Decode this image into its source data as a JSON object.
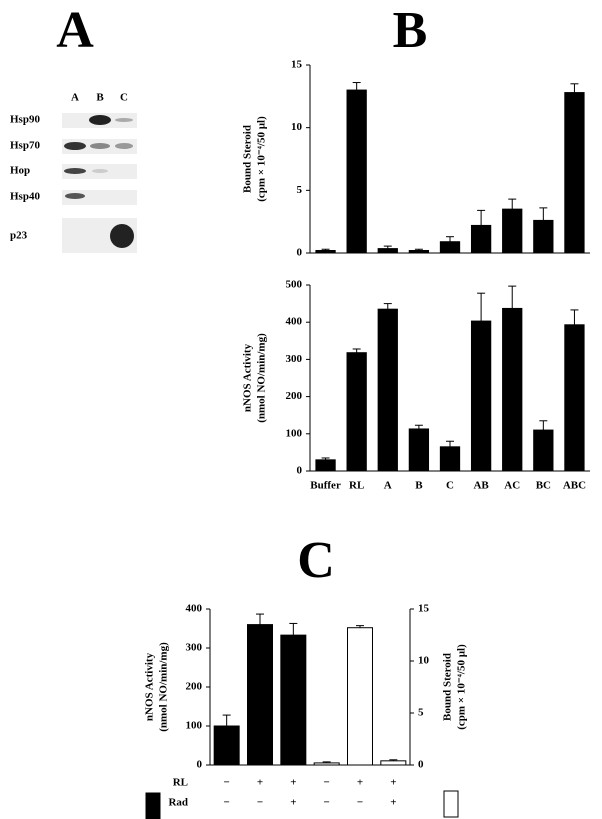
{
  "panel_labels": [
    "A",
    "B",
    "C"
  ],
  "blot": {
    "lanes": [
      "A",
      "B",
      "C"
    ],
    "rows": [
      "Hsp90",
      "Hsp70",
      "Hop",
      "Hsp40",
      "p23"
    ]
  },
  "chart_data": [
    {
      "type": "bar",
      "ylabel": [
        "Bound Steroid",
        "(cpm × 10⁻⁴/50 µl)"
      ],
      "series": [
        {
          "color": "#000000",
          "values": [
            0.2,
            13,
            0.35,
            0.2,
            0.9,
            2.2,
            3.5,
            2.6,
            12.8
          ],
          "errors": [
            0.1,
            0.6,
            0.2,
            0.1,
            0.4,
            1.2,
            0.8,
            1.0,
            0.7
          ]
        }
      ],
      "ylim": [
        0,
        15
      ],
      "yticks": [
        0,
        5,
        10,
        15
      ]
    },
    {
      "type": "bar",
      "ylabel": [
        "nNOS Activity",
        "(nmol NO/min/mg)"
      ],
      "categories": [
        "Buffer",
        "RL",
        "A",
        "B",
        "C",
        "AB",
        "AC",
        "BC",
        "ABC"
      ],
      "series": [
        {
          "color": "#000000",
          "values": [
            30,
            318,
            435,
            113,
            65,
            403,
            437,
            110,
            393
          ],
          "errors": [
            5,
            10,
            15,
            10,
            15,
            75,
            60,
            25,
            40
          ]
        }
      ],
      "ylim": [
        0,
        500
      ],
      "yticks": [
        0,
        100,
        200,
        300,
        400,
        500
      ]
    },
    {
      "type": "bar",
      "ylabel": [
        "nNOS Activity",
        "(nmol NO/min/mg)"
      ],
      "y2label": [
        "Bound Steroid",
        "(cpm × 10⁻⁴/50 µl)"
      ],
      "series": [
        {
          "color": "#000000",
          "values": [
            100,
            360,
            333,
            null,
            null,
            null
          ],
          "errors": [
            28,
            27,
            30,
            null,
            null,
            null
          ]
        },
        {
          "color": "#ffffff",
          "axis": "y2",
          "values": [
            null,
            null,
            null,
            0.2,
            13.2,
            0.4
          ],
          "errors": [
            null,
            null,
            null,
            0.1,
            0.2,
            0.1
          ]
        }
      ],
      "ylim": [
        0,
        400
      ],
      "yticks": [
        0,
        100,
        200,
        300,
        400
      ],
      "y2lim": [
        0,
        15
      ],
      "y2ticks": [
        0,
        5,
        10,
        15
      ],
      "conditions": [
        {
          "name": "RL",
          "values": [
            "−",
            "+",
            "+",
            "−",
            "+",
            "+"
          ]
        },
        {
          "name": "Rad",
          "values": [
            "−",
            "−",
            "+",
            "−",
            "−",
            "+"
          ]
        }
      ]
    }
  ]
}
